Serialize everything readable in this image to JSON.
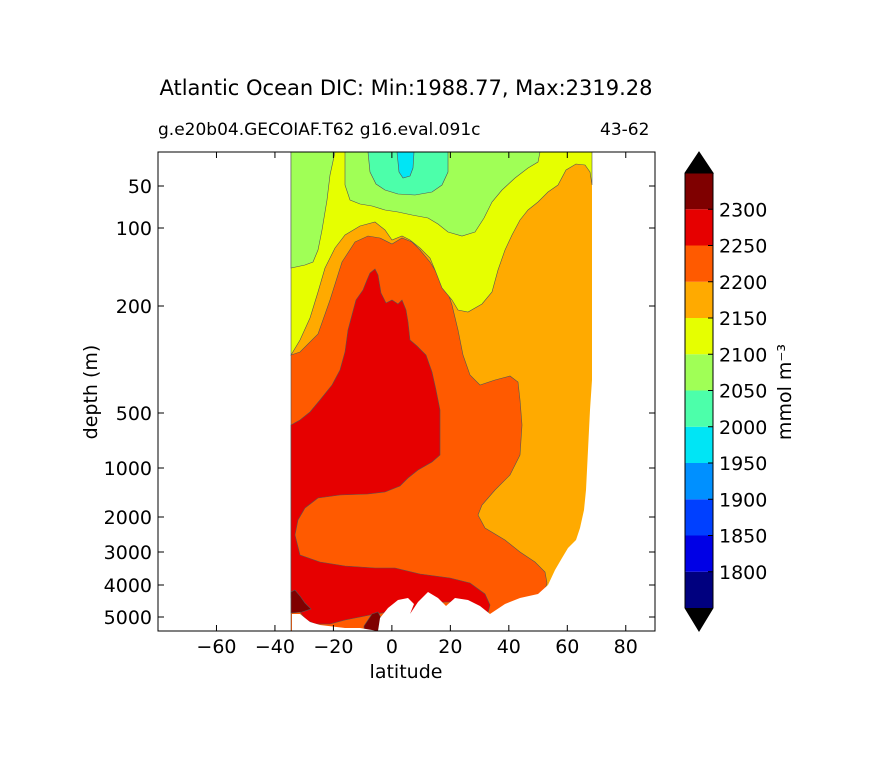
{
  "chart_data": {
    "type": "contourf",
    "title": "Atlantic Ocean DIC: Min:1988.77, Max:2319.28",
    "subtitle_left": "g.e20b04.GECOIAF.T62 g16.eval.091c",
    "subtitle_right": "43-62",
    "xlabel": "latitude",
    "ylabel": "depth (m)",
    "xlim": [
      -80,
      90
    ],
    "ylim": [
      5500,
      12
    ],
    "yscale": "log (depth+ offset)",
    "xticks": [
      "−60",
      "−40",
      "−20",
      "0",
      "20",
      "40",
      "60",
      "80"
    ],
    "xtick_values": [
      -60,
      -40,
      -20,
      0,
      20,
      40,
      60,
      80
    ],
    "yticks": [
      "50",
      "100",
      "200",
      "500",
      "1000",
      "2000",
      "3000",
      "4000",
      "5000"
    ],
    "ytick_values": [
      50,
      100,
      200,
      500,
      1000,
      2000,
      3000,
      4000,
      5000
    ],
    "colorbar": {
      "label": "mmol m⁻³",
      "levels": [
        1750,
        1800,
        1850,
        1900,
        1950,
        2000,
        2050,
        2100,
        2150,
        2200,
        2250,
        2300,
        2350
      ],
      "tick_labels": [
        "1800",
        "1850",
        "1900",
        "1950",
        "2000",
        "2050",
        "2100",
        "2150",
        "2200",
        "2250",
        "2300"
      ],
      "tick_values": [
        1800,
        1850,
        1900,
        1950,
        2000,
        2050,
        2100,
        2150,
        2200,
        2250,
        2300
      ],
      "colors": [
        "#00007f",
        "#0000e6",
        "#0040ff",
        "#0090ff",
        "#00e5f5",
        "#4cffaa",
        "#a0ff56",
        "#e6ff00",
        "#ffaa00",
        "#ff5a00",
        "#e60000",
        "#7f0000"
      ],
      "extend": "both"
    },
    "data_extent": {
      "lat_min": -34,
      "lat_max": 68
    }
  }
}
